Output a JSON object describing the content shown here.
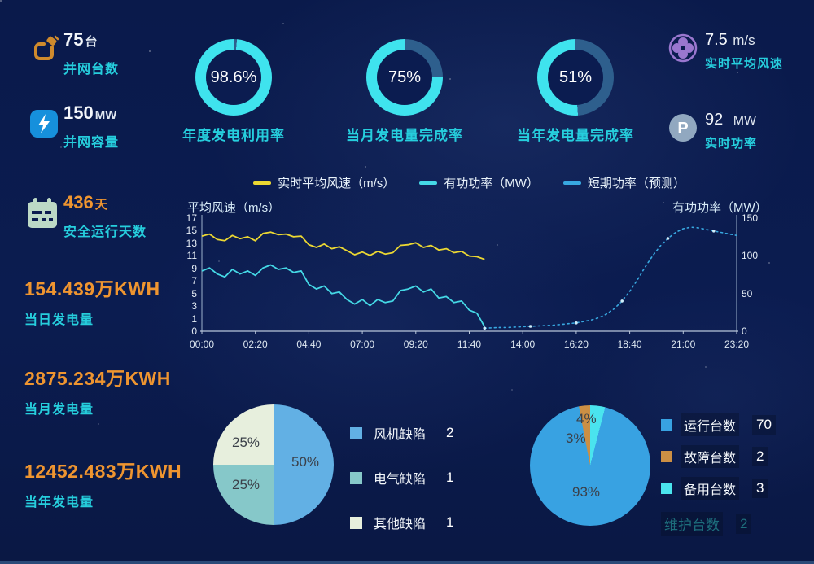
{
  "colors": {
    "accent_cyan": "#26cedd",
    "accent_orange": "#ef9530",
    "donut_fill": "#3fe3ee",
    "donut_track": "#2e5f8d",
    "line_wind": "#ecd832",
    "line_power": "#45d9e6",
    "line_forecast": "#38a8e0",
    "icon_plug": "#cf8a2d",
    "icon_bolt_bg": "#1690dc",
    "icon_calendar": "#bcd9c6",
    "icon_fan": "#9a77cf",
    "icon_p_bg": "#91a8c0"
  },
  "left_stats": [
    {
      "icon": "plug-icon",
      "value": "75",
      "unit": "台",
      "label": "并网台数"
    },
    {
      "icon": "lightning-icon",
      "value": "150",
      "unit": "MW",
      "label": "并网容量"
    },
    {
      "icon": "calendar-icon",
      "value": "436",
      "unit": "天",
      "label": "安全运行天数"
    },
    {
      "value": "154.439",
      "unit": "万KWH",
      "label": "当日发电量"
    },
    {
      "value": "2875.234",
      "unit": "万KWH",
      "label": "当月发电量"
    },
    {
      "value": "12452.483",
      "unit": "万KWH",
      "label": "当年发电量"
    }
  ],
  "donuts": [
    {
      "percent": 98.6,
      "display": "98.6%",
      "label": "年度发电利用率"
    },
    {
      "percent": 75,
      "display": "75%",
      "label": "当月发电量完成率"
    },
    {
      "percent": 51,
      "display": "51%",
      "label": "当年发电量完成率"
    }
  ],
  "right_stats": [
    {
      "icon": "fan-icon",
      "value": "7.5",
      "unit": "m/s",
      "label": "实时平均风速"
    },
    {
      "icon": "power-p-icon",
      "value": "92",
      "unit": "MW",
      "label": "实时功率"
    }
  ],
  "chart_data": [
    {
      "id": "power-wind-curve",
      "type": "line",
      "left_axis_title": "平均风速（m/s）",
      "right_axis_title": "有功功率（MW）",
      "legend": [
        "实时平均风速（m/s）",
        "有功功率（MW）",
        "短期功率（预测）"
      ],
      "x_ticks": [
        "00:00",
        "02:20",
        "04:40",
        "07:00",
        "09:20",
        "11:40",
        "14:00",
        "16:20",
        "18:40",
        "21:00",
        "23:20"
      ],
      "x_hours_max": 23.333,
      "left_axis": {
        "ticks": [
          17,
          15,
          13,
          11,
          9,
          7,
          5,
          3,
          1,
          0
        ],
        "min": 0,
        "max": 17
      },
      "right_axis": {
        "ticks": [
          150,
          100,
          50,
          0
        ],
        "min": 0,
        "max": 150
      },
      "series": [
        {
          "name": "实时平均风速（m/s）",
          "axis": "left",
          "style": "solid",
          "color": "#ecd832",
          "start_hour": 0,
          "step_min": 20,
          "values": [
            14.3,
            14.6,
            13.8,
            13.6,
            14.4,
            13.9,
            14.2,
            13.6,
            14.7,
            14.9,
            14.5,
            14.6,
            14.2,
            14.3,
            13.0,
            12.6,
            13.1,
            12.4,
            12.7,
            12.1,
            11.5,
            11.9,
            11.4,
            12.0,
            11.6,
            11.8,
            12.9,
            13.0,
            13.3,
            12.6,
            12.9,
            12.2,
            12.4,
            11.8,
            12.0,
            11.3,
            11.2,
            10.8
          ]
        },
        {
          "name": "有功功率（MW）",
          "axis": "right",
          "style": "solid",
          "color": "#45d9e6",
          "start_hour": 0,
          "step_min": 20,
          "values": [
            80,
            84,
            76,
            72,
            82,
            76,
            80,
            74,
            84,
            88,
            82,
            84,
            78,
            80,
            62,
            56,
            60,
            50,
            52,
            42,
            36,
            42,
            34,
            42,
            38,
            40,
            54,
            56,
            60,
            52,
            56,
            44,
            46,
            38,
            40,
            28,
            24,
            6
          ]
        },
        {
          "name": "短期功率（预测）",
          "axis": "right",
          "style": "dotted",
          "color": "#38a8e0",
          "start_hour": 12.333,
          "step_min": 20,
          "values": [
            4,
            4.5,
            5,
            5,
            5.5,
            6,
            6.5,
            7,
            7.5,
            8,
            9,
            10,
            11,
            13,
            15,
            18,
            23,
            30,
            40,
            53,
            68,
            85,
            100,
            113,
            123,
            131,
            136,
            138,
            137,
            135,
            133,
            131,
            129,
            127
          ]
        }
      ]
    },
    {
      "id": "defect-pie",
      "type": "pie",
      "slices": [
        {
          "label": "风机缺陷",
          "count": "2",
          "percent": 50,
          "percent_label": "50%",
          "color": "#62b0e4"
        },
        {
          "label": "电气缺陷",
          "count": "1",
          "percent": 25,
          "percent_label": "25%",
          "color": "#86c8c9"
        },
        {
          "label": "其他缺陷",
          "count": "1",
          "percent": 25,
          "percent_label": "25%",
          "color": "#e7efdd"
        }
      ],
      "draw_order": [
        0,
        1,
        2
      ]
    },
    {
      "id": "unit-status-pie",
      "type": "pie",
      "slices": [
        {
          "label": "运行台数",
          "count": "70",
          "percent": 93,
          "percent_label": "93%",
          "color": "#38a2e2"
        },
        {
          "label": "故障台数",
          "count": "2",
          "percent": 3,
          "percent_label": "3%",
          "color": "#cc8f44"
        },
        {
          "label": "备用台数",
          "count": "3",
          "percent": 4,
          "percent_label": "4%",
          "color": "#4ae4ee"
        }
      ],
      "draw_order": [
        2,
        0,
        1
      ],
      "disabled_item": {
        "label": "维护台数",
        "count": "2"
      }
    }
  ]
}
